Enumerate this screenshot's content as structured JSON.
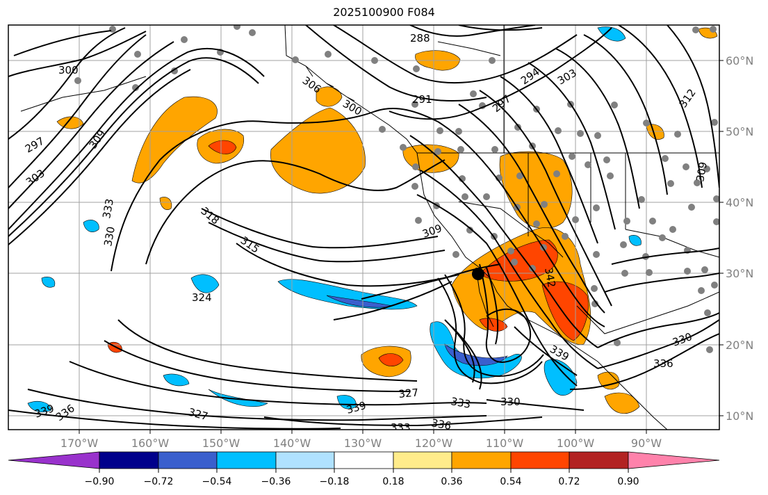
{
  "title": "2025100900 F084",
  "map": {
    "longitude_labels": [
      "170°W",
      "160°W",
      "150°W",
      "140°W",
      "130°W",
      "120°W",
      "110°W",
      "100°W",
      "90°W"
    ],
    "latitude_labels": [
      "60°N",
      "50°N",
      "40°N",
      "30°N",
      "20°N",
      "10°N"
    ],
    "contour_labels": [
      "300",
      "297",
      "303",
      "309",
      "333",
      "330",
      "318",
      "315",
      "324",
      "306",
      "300",
      "288",
      "291",
      "294",
      "297",
      "303",
      "312",
      "309",
      "309",
      "327",
      "342",
      "339",
      "330",
      "336",
      "339",
      "336",
      "327",
      "333",
      "330",
      "336",
      "333",
      "339"
    ],
    "surface_low_marker": "black dot"
  },
  "colorbar": {
    "tick_labels": [
      "−0.90",
      "−0.72",
      "−0.54",
      "−0.36",
      "−0.18",
      "0.18",
      "0.36",
      "0.54",
      "0.72",
      "0.90"
    ],
    "colors": [
      "#9932cc",
      "#00008b",
      "#3a5fcd",
      "#00bfff",
      "#b0e2ff",
      "#ffffff",
      "#ffec8b",
      "#ffa500",
      "#ff4500",
      "#b22222",
      "#ff82ab"
    ]
  }
}
